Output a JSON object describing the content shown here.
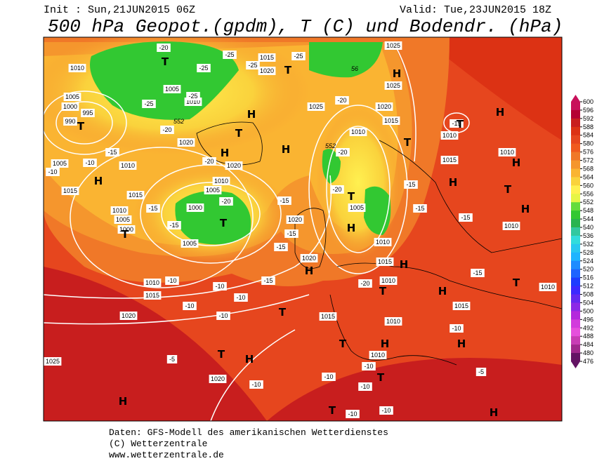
{
  "header": {
    "init": "Init : Sun,21JUN2015 06Z",
    "valid": "Valid: Tue,23JUN2015 18Z",
    "title": "500 hPa Geopot.(gpdm), T (C) und Bodendr. (hPa)"
  },
  "colorbar": {
    "ticks": [
      600,
      596,
      592,
      588,
      584,
      580,
      576,
      572,
      568,
      564,
      560,
      556,
      552,
      548,
      544,
      540,
      536,
      532,
      528,
      524,
      520,
      516,
      512,
      508,
      504,
      500,
      496,
      492,
      488,
      484,
      480,
      476
    ],
    "colors": [
      "#c8105a",
      "#b40032",
      "#c81e1e",
      "#dc3214",
      "#e6461e",
      "#f05a1e",
      "#f07828",
      "#f5962d",
      "#fab432",
      "#fad23c",
      "#fff050",
      "#e6f546",
      "#64dc3c",
      "#32c832",
      "#28b450",
      "#32c8a0",
      "#32dcdc",
      "#28c8f0",
      "#1eb4ff",
      "#1e8cff",
      "#1e64ff",
      "#1e3cff",
      "#3c28ff",
      "#6428f0",
      "#8c28e6",
      "#b428dc",
      "#d23cdc",
      "#e650dc",
      "#c83cb4",
      "#a0288c",
      "#641464"
    ]
  },
  "map": {
    "pressure_labels": [
      "1010",
      "1005",
      "1010",
      "1005",
      "1000",
      "995",
      "990",
      "1020",
      "1005",
      "1010",
      "1020",
      "1015",
      "1015",
      "1010",
      "1005",
      "1000",
      "1010",
      "1005",
      "1000",
      "1005",
      "1020",
      "1020",
      "1010",
      "1015",
      "1020",
      "1025",
      "1020",
      "1015",
      "1020",
      "1025",
      "1020",
      "1015",
      "1010",
      "1025",
      "1025",
      "1015",
      "1010",
      "1010",
      "1010",
      "1010",
      "1015",
      "1010",
      "1015",
      "1015",
      "1010",
      "1010",
      "1010",
      "1005"
    ],
    "temperature_labels": [
      "-20",
      "-25",
      "-25",
      "-25",
      "-25",
      "-25",
      "-25",
      "-20",
      "-15",
      "-10",
      "-10",
      "-20",
      "-20",
      "-15",
      "-15",
      "-15",
      "-15",
      "-15",
      "-15",
      "-10",
      "-10",
      "-10",
      "-10",
      "-10",
      "-5",
      "-10",
      "-20",
      "-20",
      "-20",
      "-15",
      "-15",
      "-15",
      "-15",
      "-20",
      "-10",
      "-5",
      "-10",
      "-10",
      "-10",
      "-10",
      "-10",
      "-15"
    ],
    "geopotential_labels": [
      "552",
      "552",
      "56"
    ],
    "centers": [
      "T",
      "T",
      "H",
      "T",
      "H",
      "T",
      "H",
      "H",
      "T",
      "H",
      "T",
      "T",
      "H",
      "T",
      "H",
      "T",
      "H",
      "H",
      "T",
      "T",
      "H",
      "H",
      "T",
      "H",
      "H",
      "T",
      "H",
      "T",
      "T",
      "T",
      "H",
      "H",
      "H",
      "T",
      "H"
    ]
  },
  "footer": {
    "line1": "Daten: GFS-Modell des amerikanischen Wetterdienstes",
    "line2": "(C) Wetterzentrale",
    "line3": "www.wetterzentrale.de"
  }
}
